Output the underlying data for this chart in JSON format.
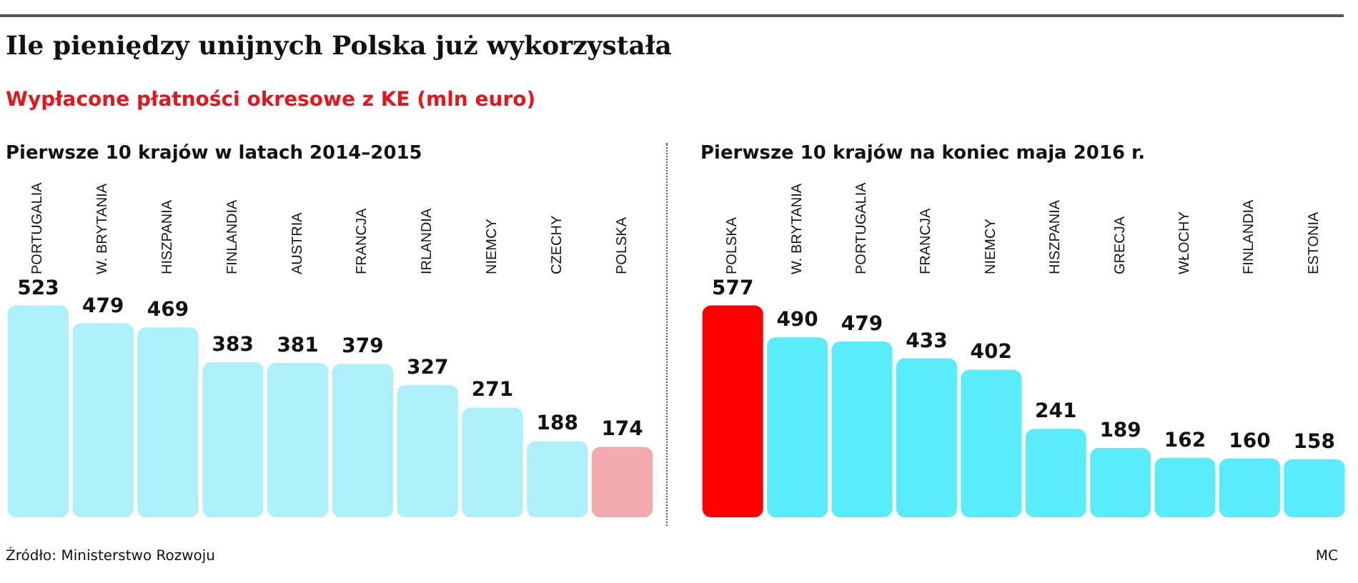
{
  "chart_data": [
    {
      "type": "bar",
      "title": "Ile pieniędzy unijnych Polska już wykorzystała",
      "subtitle": "Wypłacone płatności okresowe z KE (mln euro)",
      "annotations": [
        "Pierwsze 10 krajów w latach 2014–2015",
        "Źródło: Ministerstwo Rozwoju"
      ],
      "categories": [
        "PORTUGALIA",
        "W. BRYTANIA",
        "HISZPANIA",
        "FINLANDIA",
        "AUSTRIA",
        "FRANCJA",
        "IRLANDIA",
        "NIEMCY",
        "CZECHY",
        "POLSKA"
      ],
      "values": [
        523,
        479,
        469,
        383,
        381,
        379,
        327,
        271,
        188,
        174
      ],
      "colors": [
        "#aef0f9",
        "#aef0f9",
        "#aef0f9",
        "#aef0f9",
        "#aef0f9",
        "#aef0f9",
        "#aef0f9",
        "#aef0f9",
        "#aef0f9",
        "#f0aab0"
      ],
      "data_labels": true,
      "tick_labels": "x"
    },
    {
      "type": "bar",
      "annotations": [
        "Pierwsze 10 krajów na koniec maja 2016 r.",
        "MC"
      ],
      "categories": [
        "POLSKA",
        "W. BRYTANIA",
        "PORTUGALIA",
        "FRANCJA",
        "NIEMCY",
        "HISZPANIA",
        "GRECJA",
        "WŁOCHY",
        "FINLANDIA",
        "ESTONIA"
      ],
      "values": [
        577,
        490,
        479,
        433,
        402,
        241,
        189,
        162,
        160,
        158
      ],
      "colors": [
        "#ff0000",
        "#59ecfa",
        "#59ecfa",
        "#59ecfa",
        "#59ecfa",
        "#59ecfa",
        "#59ecfa",
        "#59ecfa",
        "#59ecfa",
        "#59ecfa"
      ],
      "data_labels": true,
      "tick_labels": "x"
    }
  ]
}
